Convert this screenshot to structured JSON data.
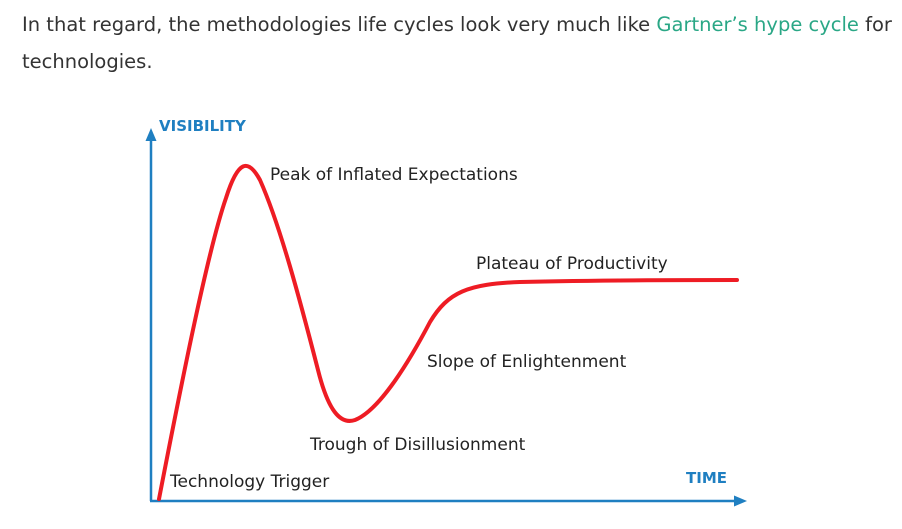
{
  "paragraph": {
    "text_before": "In that regard, the methodologies life cycles look very much like ",
    "link_text": "Gartner’s hype cycle",
    "text_after": " for technologies."
  },
  "colors": {
    "link": "#2aa786",
    "axis": "#1f7fc1",
    "curve": "#ee1c24",
    "text": "#333333"
  },
  "chart_data": {
    "type": "line",
    "title": "",
    "ylabel": "VISIBILITY",
    "xlabel": "TIME",
    "grid": false,
    "annotations": [
      {
        "id": "technology-trigger",
        "text": "Technology Trigger"
      },
      {
        "id": "peak",
        "text": "Peak of Inflated Expectations"
      },
      {
        "id": "trough",
        "text": "Trough of Disillusionment"
      },
      {
        "id": "slope",
        "text": "Slope of Enlightenment"
      },
      {
        "id": "plateau",
        "text": "Plateau of Productivity"
      }
    ]
  }
}
